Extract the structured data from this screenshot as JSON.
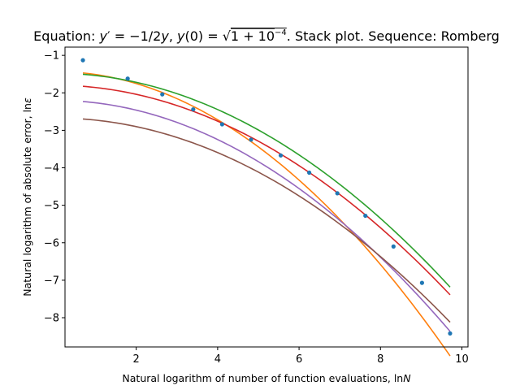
{
  "chart_data": {
    "type": "line",
    "title": {
      "prefix": "Equation: ",
      "y_prime": "y",
      "prime": "′",
      "eq1": " = −1/2",
      "y1": "y",
      "comma1": ", ",
      "y0": "y",
      "arg0": "(0) = ",
      "sqrt_body": "1 + 10",
      "exponent": "−4",
      "suffix": ". Stack plot. Sequence: Romberg"
    },
    "xlabel": {
      "text": "Natural logarithm of number of function evaluations, ln",
      "var": "N"
    },
    "ylabel": {
      "text": "Natural logarithm of absolute error, ln",
      "var": "ε"
    },
    "xlim": [
      0.25,
      10.15
    ],
    "ylim": [
      -8.78,
      -0.78
    ],
    "xticks": [
      2,
      4,
      6,
      8,
      10
    ],
    "yticks": [
      -1,
      -2,
      -3,
      -4,
      -5,
      -6,
      -7,
      -8
    ],
    "grid": false,
    "points": {
      "color": "#1f77b4",
      "x": [
        0.69,
        1.79,
        2.64,
        3.4,
        4.11,
        4.82,
        5.55,
        6.25,
        6.94,
        7.63,
        8.32,
        9.02,
        9.71
      ],
      "y": [
        -1.13,
        -1.62,
        -2.04,
        -2.44,
        -2.84,
        -3.25,
        -3.67,
        -4.13,
        -4.68,
        -5.28,
        -6.1,
        -7.07,
        -8.42
      ]
    },
    "series": [
      {
        "color": "#ff7f0e",
        "x_range": [
          0.69,
          9.71
        ],
        "coeffs": [
          -1.43,
          0.0,
          -0.0805
        ]
      },
      {
        "color": "#2ca02c",
        "x_range": [
          0.69,
          9.71
        ],
        "coeffs": [
          -1.4765,
          -0.0003,
          -0.0605
        ]
      },
      {
        "color": "#d62728",
        "x_range": [
          0.69,
          9.71
        ],
        "coeffs": [
          -1.7935,
          -0.0054,
          -0.0588
        ]
      },
      {
        "color": "#9467bd",
        "x_range": [
          0.69,
          9.71
        ],
        "coeffs": [
          -2.2,
          0.0,
          -0.0654
        ]
      },
      {
        "color": "#8c564b",
        "x_range": [
          0.69,
          9.71
        ],
        "coeffs": [
          -2.67,
          0.0,
          -0.0578
        ]
      }
    ]
  }
}
